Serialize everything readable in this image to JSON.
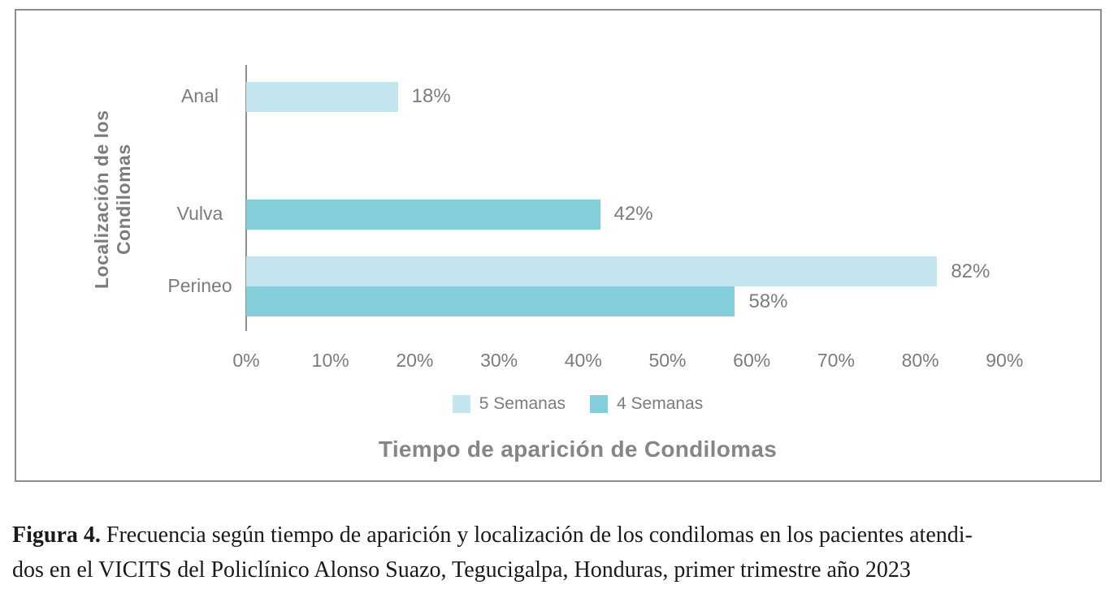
{
  "chart_data": {
    "type": "bar",
    "orientation": "horizontal",
    "title": "",
    "xlabel": "Tiempo de aparición de Condilomas",
    "ylabel": "Localización de los Condilomas",
    "categories": [
      "Anal",
      "Vulva",
      "Perineo"
    ],
    "series": [
      {
        "name": "5 Semanas",
        "color": "#c3e5ef",
        "values": [
          18,
          null,
          82
        ]
      },
      {
        "name": "4 Semanas",
        "color": "#84cdda",
        "values": [
          null,
          42,
          58
        ]
      }
    ],
    "value_suffix": "%",
    "data_labels": [
      "18%",
      "42%",
      "82%",
      "58%"
    ],
    "xlim": [
      0,
      90
    ],
    "ticks": [
      "0%",
      "10%",
      "20%",
      "30%",
      "40%",
      "50%",
      "60%",
      "70%",
      "80%",
      "90%"
    ],
    "grid": false,
    "legend_position": "bottom"
  },
  "legend": {
    "item1": "5 Semanas",
    "item2": "4 Semanas"
  },
  "axes": {
    "x_title": "Tiempo de aparición de Condilomas",
    "y_title": "Localización de los Condilomas"
  },
  "caption": {
    "label": "Figura 4.",
    "line1_rest": " Frecuencia según tiempo de aparición y localización de los condilomas en los pacientes atendi-",
    "line2": "dos en el VICITS del Policlínico Alonso Suazo, Tegucigalpa, Honduras, primer trimestre año 2023"
  },
  "colors": {
    "series_5_semanas": "#c3e5ef",
    "series_4_semanas": "#84cdda",
    "chart_text": "#7c7c7c",
    "border": "#8e8e8e",
    "caption_text": "#1a1a1a"
  }
}
